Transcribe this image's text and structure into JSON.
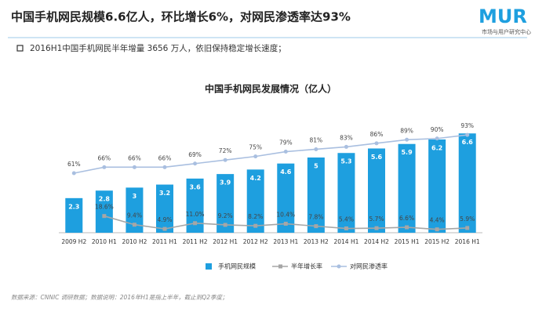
{
  "header": {
    "title": "中国手机网民规模6.6亿人，环比增长6%，对网民渗透率达93%",
    "subtitle": "2016H1中国手机网民半年增量 3656 万人，依旧保持稳定增长速度；",
    "logo": "MUR",
    "logo_subtitle": "市场与用户研究中心"
  },
  "chart_data": {
    "type": "bar",
    "title": "中国手机网民发展情况（亿人）",
    "categories": [
      "2009 H2",
      "2010 H1",
      "2010 H2",
      "2011 H1",
      "2011 H2",
      "2012 H1",
      "2012 H2",
      "2013 H1",
      "2013 H2",
      "2014 H1",
      "2014 H2",
      "2015 H1",
      "2015 H2",
      "2016 H1"
    ],
    "series": [
      {
        "name": "手机网民规模",
        "type": "bar",
        "color": "#1e9fdf",
        "values": [
          2.3,
          2.8,
          3.0,
          3.2,
          3.6,
          3.9,
          4.2,
          4.6,
          5.0,
          5.3,
          5.6,
          5.9,
          6.2,
          6.6
        ]
      },
      {
        "name": "半年增长率",
        "type": "line",
        "color": "#a6a6a6",
        "values": [
          null,
          18.6,
          9.4,
          4.9,
          11.0,
          9.2,
          8.2,
          10.4,
          7.8,
          5.4,
          5.7,
          6.6,
          4.4,
          5.9
        ],
        "value_labels": [
          null,
          "18.6%",
          "9.4%",
          "4.9%",
          "11.0%",
          "9.2%",
          "8.2%",
          "10.4%",
          "7.8%",
          "5.4%",
          "5.7%",
          "6.6%",
          "4.4%",
          "5.9%"
        ]
      },
      {
        "name": "对网民渗透率",
        "type": "line",
        "color": "#a9bfe0",
        "values": [
          61,
          66,
          66,
          66,
          69,
          72,
          75,
          79,
          81,
          83,
          86,
          89,
          90,
          93
        ],
        "value_labels": [
          "61%",
          "66%",
          "66%",
          "66%",
          "69%",
          "72%",
          "75%",
          "79%",
          "81%",
          "83%",
          "86%",
          "89%",
          "90%",
          "93%"
        ]
      }
    ]
  },
  "footnote": "数据来源：CNNIC 调研数据；数据说明：2016年H1是指上半年，截止到Q2季度；"
}
